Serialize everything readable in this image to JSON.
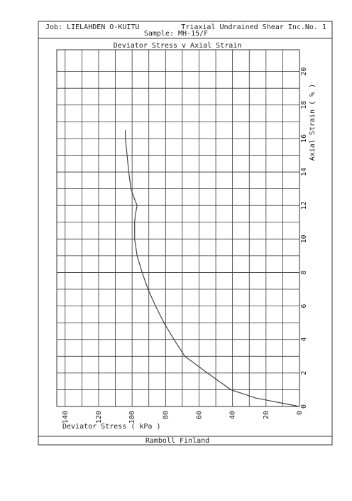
{
  "header": {
    "job": "Job: LIELAHDEN O-KUITU",
    "test": "Triaxial Undrained Shear Inc.No. 1",
    "sample": "Sample: MH-15/F"
  },
  "footer": "Ramboll Finland",
  "chart_data": {
    "type": "line",
    "title": "Deviator Stress v Axial Strain",
    "x_label": "Deviator Stress ( kPa )",
    "y_label": "Axial Strain ( % )",
    "xlim": [
      145,
      0
    ],
    "xticks": [
      140,
      120,
      100,
      80,
      60,
      40,
      20,
      0
    ],
    "ylim": [
      0,
      21.3
    ],
    "yticks": [
      0,
      2,
      4,
      6,
      8,
      10,
      12,
      14,
      16,
      18,
      20
    ],
    "grid": true,
    "minor_grid": true,
    "color": "#444",
    "x": [
      0,
      26,
      41,
      55,
      68.5,
      75,
      81,
      86,
      90.5,
      94,
      97,
      98.5,
      98.5,
      98,
      97,
      99,
      100.7,
      102,
      103,
      104,
      104
    ],
    "values": [
      0,
      0.5,
      1,
      2,
      3,
      4,
      5,
      6,
      7,
      8,
      9,
      10,
      11,
      11.5,
      12,
      12.5,
      13,
      14,
      15,
      16,
      16.5
    ]
  }
}
